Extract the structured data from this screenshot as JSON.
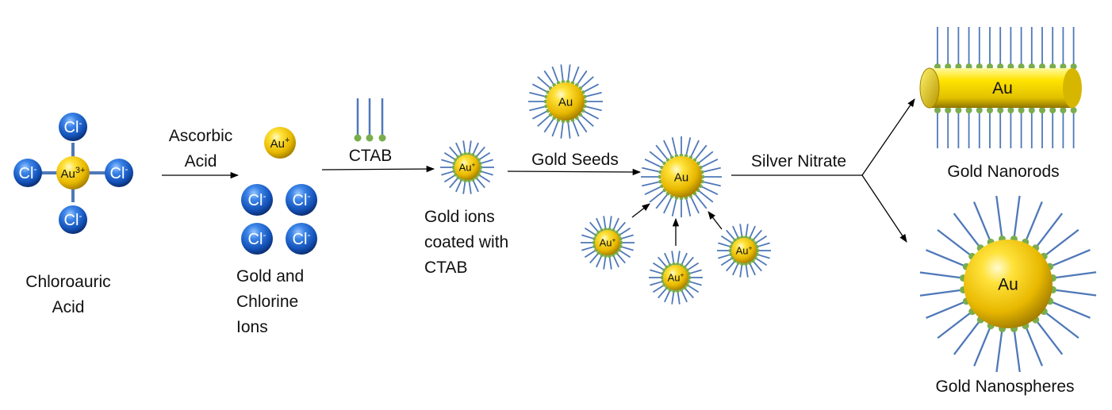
{
  "labels": {
    "chloroauric_line1": "Chloroauric",
    "chloroauric_line2": "Acid",
    "ascorbic_line1": "Ascorbic",
    "ascorbic_line2": "Acid",
    "gold_chlorine_line1": "Gold and",
    "gold_chlorine_line2": "Chlorine",
    "gold_chlorine_line3": "Ions",
    "ctab": "CTAB",
    "coated_line1": "Gold ions",
    "coated_line2": "coated with",
    "coated_line3": "CTAB",
    "gold_seeds": "Gold Seeds",
    "silver_nitrate": "Silver Nitrate",
    "nanorods": "Gold Nanorods",
    "nanospheres": "Gold Nanospheres"
  },
  "ions": {
    "au3": "Au",
    "au3_charge": "3+",
    "au_plus": "Au",
    "plus": "+",
    "cl": "Cl",
    "minus": "-",
    "au": "Au"
  },
  "colors": {
    "gold": "#f2c200",
    "chloride_blue": "#1f66c8",
    "ctab_tail": "#4f78b8",
    "ctab_head": "#79ad4d",
    "arrow": "#000000"
  }
}
